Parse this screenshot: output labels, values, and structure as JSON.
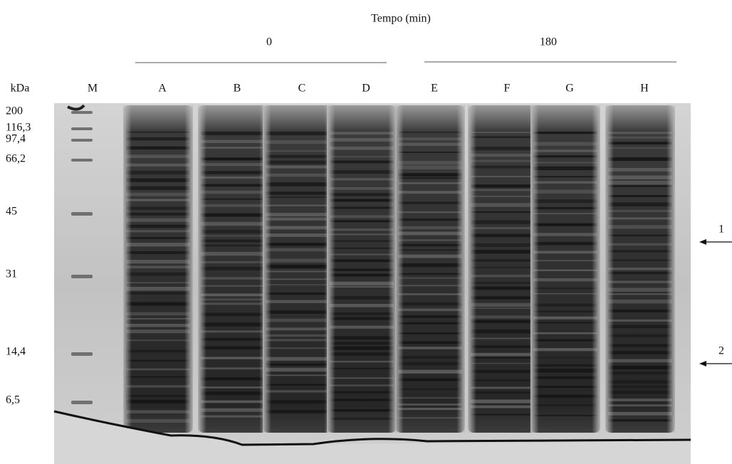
{
  "header": {
    "title": "Tempo (min)",
    "groups": [
      "0",
      "180"
    ]
  },
  "lanes": {
    "unit": "kDa",
    "labels": [
      "M",
      "A",
      "B",
      "C",
      "D",
      "E",
      "F",
      "G",
      "H"
    ]
  },
  "marker": [
    "200",
    "116,3",
    "97,4",
    "66,2",
    "45",
    "31",
    "14,4",
    "6,5"
  ],
  "arrows": [
    "1",
    "2"
  ]
}
